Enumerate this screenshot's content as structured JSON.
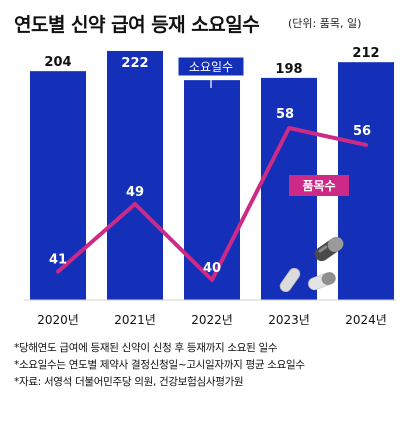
{
  "header": {
    "title": "연도별 신약 급여 등재 소요일수",
    "unit": "(단위: 품목, 일)"
  },
  "colors": {
    "bar": "#1530b8",
    "line": "#cc2a86",
    "bar_label_light": "#ffffff",
    "bar_label_dark": "#111111"
  },
  "chart_data": {
    "type": "bar",
    "categories": [
      "2020년",
      "2021년",
      "2022년",
      "2023년",
      "2024년"
    ],
    "series": [
      {
        "name": "소요일수",
        "type": "bar",
        "values": [
          204,
          222,
          196,
          198,
          212
        ]
      },
      {
        "name": "품목수",
        "type": "line",
        "values": [
          41,
          49,
          40,
          58,
          56
        ]
      }
    ],
    "legend": [
      {
        "label": "소요일수",
        "series": "소요일수",
        "placement": "top-center"
      },
      {
        "label": "품목수",
        "series": "품목수",
        "placement": "right"
      }
    ],
    "title": "연도별 신약 급여 등재 소요일수",
    "xlabel": "",
    "ylabel": "",
    "ylim": [
      0,
      230
    ],
    "line_ylim": [
      0,
      80
    ],
    "grid": false
  },
  "notes": [
    "*당해연도 급여에 등재된 신약이 신청 후 등재까지 소요된 일수",
    "*소요일수는 연도별 제약사 결정신청일~고시일자까지 평균 소요일수",
    "*자료: 서영석 더불어민주당 의원, 건강보험심사평가원"
  ],
  "decoration": {
    "icon": "pill-capsules-icon"
  }
}
